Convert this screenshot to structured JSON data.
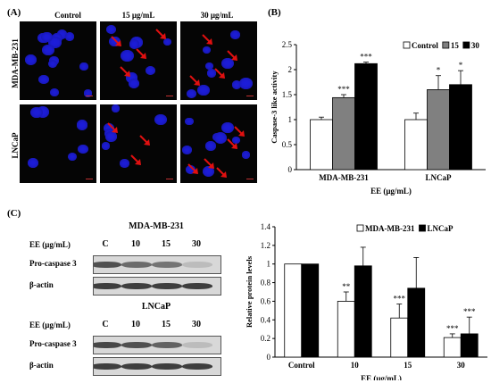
{
  "panel_A": {
    "label": "(A)",
    "columns": [
      "Control",
      "15 μg/mL",
      "30 μg/mL"
    ],
    "rows": [
      "MDA-MB-231",
      "LNCaP"
    ]
  },
  "panel_B": {
    "label": "(B)"
  },
  "panel_C": {
    "label": "(C)",
    "blots": [
      {
        "title": "MDA-MB-231",
        "ee_label": "EE (μg/mL)",
        "lanes": [
          "C",
          "10",
          "15",
          "30"
        ],
        "rows": [
          "Pro-caspase 3",
          "β-actin"
        ]
      },
      {
        "title": "LNCaP",
        "ee_label": "EE (μg/mL)",
        "lanes": [
          "C",
          "10",
          "15",
          "30"
        ],
        "rows": [
          "Pro-caspase 3",
          "β-actin"
        ]
      }
    ]
  },
  "chart_data": [
    {
      "type": "bar",
      "panel": "B",
      "categories": [
        "MDA-MB-231",
        "LNCaP"
      ],
      "series": [
        {
          "name": "Control",
          "values": [
            1.0,
            1.0
          ],
          "errors": [
            0.05,
            0.13
          ],
          "color": "#ffffff",
          "sig": [
            "",
            ""
          ]
        },
        {
          "name": "15",
          "values": [
            1.44,
            1.6
          ],
          "errors": [
            0.06,
            0.28
          ],
          "color": "#808080",
          "sig": [
            "***",
            "*"
          ]
        },
        {
          "name": "30",
          "values": [
            2.12,
            1.7
          ],
          "errors": [
            0.03,
            0.28
          ],
          "color": "#000000",
          "sig": [
            "***",
            "*"
          ]
        }
      ],
      "xlabel": "EE (μg/mL)",
      "ylabel": "Caspase-3 like activity",
      "ylim": [
        0,
        2.5
      ],
      "yticks": [
        "0",
        "0.5",
        "1",
        "1.5",
        "2",
        "2.5"
      ],
      "legend": "top-right"
    },
    {
      "type": "bar",
      "panel": "C",
      "categories": [
        "Control",
        "10",
        "15",
        "30"
      ],
      "series": [
        {
          "name": "MDA-MB-231",
          "values": [
            1.0,
            0.6,
            0.42,
            0.21
          ],
          "errors": [
            0,
            0.1,
            0.15,
            0.04
          ],
          "color": "#ffffff",
          "sig": [
            "",
            "**",
            "***",
            "***"
          ]
        },
        {
          "name": "LNCaP",
          "values": [
            1.0,
            0.98,
            0.74,
            0.25
          ],
          "errors": [
            0,
            0.2,
            0.33,
            0.18
          ],
          "color": "#000000",
          "sig": [
            "",
            "",
            "",
            "***"
          ]
        }
      ],
      "xlabel": "EE (μg/mL)",
      "ylabel": "Relative protein levels",
      "ylim": [
        0,
        1.4
      ],
      "yticks": [
        "0",
        "0.2",
        "0.4",
        "0.6",
        "0.8",
        "1",
        "1.2",
        "1.4"
      ],
      "legend": "top-right"
    }
  ]
}
